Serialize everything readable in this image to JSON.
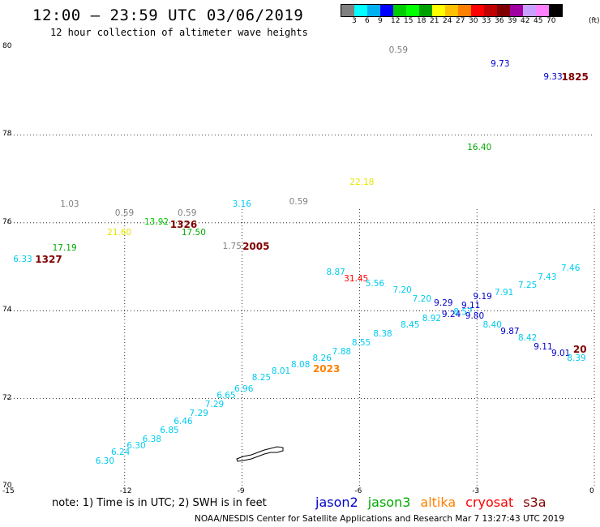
{
  "title": "12:00 — 23:59 UTC 03/06/2019",
  "subtitle": "12 hour collection of altimeter wave heights",
  "legend": {
    "unit": "(ft)",
    "colors": [
      "#808080",
      "#00ffff",
      "#00b0f0",
      "#0000ff",
      "#00cc00",
      "#00ff00",
      "#00a000",
      "#ffff00",
      "#ffc000",
      "#ff8000",
      "#ff0000",
      "#c00000",
      "#800000",
      "#a000a0",
      "#c8a0ff",
      "#ff80ff",
      "#000000"
    ],
    "labels": [
      "3",
      "6",
      "9",
      "12",
      "15",
      "18",
      "21",
      "24",
      "27",
      "30",
      "33",
      "36",
      "39",
      "42",
      "45",
      "70"
    ]
  },
  "axes": {
    "x_ticks": [
      "-15",
      "-12",
      "-9",
      "-6",
      "-3",
      "0"
    ],
    "y_ticks": [
      "80",
      "78",
      "76",
      "74",
      "72",
      "70"
    ]
  },
  "chart_data": {
    "type": "scatter",
    "x_range": [
      -15,
      0
    ],
    "y_range": [
      70,
      80
    ],
    "grid": true,
    "wave_heights": [
      {
        "v": "0.59",
        "lon": -5.0,
        "lat": 79.9,
        "c": "#808080"
      },
      {
        "v": "9.73",
        "lon": -2.4,
        "lat": 79.6,
        "c": "#0000cc"
      },
      {
        "v": "9.33",
        "lon": -1.05,
        "lat": 79.3,
        "c": "#0000cc"
      },
      {
        "v": "16.40",
        "lon": -3.0,
        "lat": 77.7,
        "c": "#00aa00"
      },
      {
        "v": "22.18",
        "lon": -6.0,
        "lat": 76.9,
        "c": "#e6e600"
      },
      {
        "v": "0.59",
        "lon": -7.55,
        "lat": 76.45,
        "c": "#808080"
      },
      {
        "v": "1.03",
        "lon": -13.4,
        "lat": 76.4,
        "c": "#808080"
      },
      {
        "v": "3.16",
        "lon": -9.0,
        "lat": 76.4,
        "c": "#00ccee"
      },
      {
        "v": "0.59",
        "lon": -12.0,
        "lat": 76.2,
        "c": "#808080"
      },
      {
        "v": "0.59",
        "lon": -10.4,
        "lat": 76.2,
        "c": "#808080"
      },
      {
        "v": "13.92",
        "lon": -11.25,
        "lat": 76.0,
        "c": "#00cc00"
      },
      {
        "v": "21.60",
        "lon": -12.2,
        "lat": 75.75,
        "c": "#e6e600"
      },
      {
        "v": "17.50",
        "lon": -10.3,
        "lat": 75.75,
        "c": "#00aa00"
      },
      {
        "v": "1.75",
        "lon": -9.25,
        "lat": 75.45,
        "c": "#808080"
      },
      {
        "v": "17.19",
        "lon": -13.6,
        "lat": 75.4,
        "c": "#00aa00"
      },
      {
        "v": "6.33",
        "lon": -14.6,
        "lat": 75.15,
        "c": "#00ccee"
      },
      {
        "v": "8.87",
        "lon": -6.6,
        "lat": 74.85,
        "c": "#00ccee"
      },
      {
        "v": "31.45",
        "lon": -6.15,
        "lat": 74.7,
        "c": "#ff0000"
      },
      {
        "v": "5.56",
        "lon": -5.6,
        "lat": 74.6,
        "c": "#00ccee"
      },
      {
        "v": "7.20",
        "lon": -4.9,
        "lat": 74.45,
        "c": "#00ccee"
      },
      {
        "v": "7.20",
        "lon": -4.4,
        "lat": 74.25,
        "c": "#00ccee"
      },
      {
        "v": "9.29",
        "lon": -3.85,
        "lat": 74.15,
        "c": "#0000cc"
      },
      {
        "v": "9.11",
        "lon": -3.15,
        "lat": 74.1,
        "c": "#0000cc"
      },
      {
        "v": "9.24",
        "lon": -3.65,
        "lat": 73.9,
        "c": "#0000cc"
      },
      {
        "v": "8.57",
        "lon": -3.35,
        "lat": 73.95,
        "c": "#00ccee"
      },
      {
        "v": "9.19",
        "lon": -2.85,
        "lat": 74.3,
        "c": "#0000cc"
      },
      {
        "v": "7.91",
        "lon": -2.3,
        "lat": 74.4,
        "c": "#00ccee"
      },
      {
        "v": "7.25",
        "lon": -1.7,
        "lat": 74.55,
        "c": "#00ccee"
      },
      {
        "v": "7.43",
        "lon": -1.2,
        "lat": 74.75,
        "c": "#00ccee"
      },
      {
        "v": "7.46",
        "lon": -0.6,
        "lat": 74.95,
        "c": "#00ccee"
      },
      {
        "v": "8.92",
        "lon": -4.15,
        "lat": 73.8,
        "c": "#00ccee"
      },
      {
        "v": "9.80",
        "lon": -3.05,
        "lat": 73.85,
        "c": "#0000cc"
      },
      {
        "v": "8.40",
        "lon": -2.6,
        "lat": 73.65,
        "c": "#00ccee"
      },
      {
        "v": "8.45",
        "lon": -4.7,
        "lat": 73.65,
        "c": "#00ccee"
      },
      {
        "v": "9.87",
        "lon": -2.15,
        "lat": 73.5,
        "c": "#0000cc"
      },
      {
        "v": "8.38",
        "lon": -5.4,
        "lat": 73.45,
        "c": "#00ccee"
      },
      {
        "v": "8.42",
        "lon": -1.7,
        "lat": 73.35,
        "c": "#00ccee"
      },
      {
        "v": "8.55",
        "lon": -5.95,
        "lat": 73.25,
        "c": "#00ccee"
      },
      {
        "v": "9.11",
        "lon": -1.3,
        "lat": 73.15,
        "c": "#0000cc"
      },
      {
        "v": "7.88",
        "lon": -6.45,
        "lat": 73.05,
        "c": "#00ccee"
      },
      {
        "v": "9.01",
        "lon": -0.85,
        "lat": 73.0,
        "c": "#0000cc"
      },
      {
        "v": "8.26",
        "lon": -6.95,
        "lat": 72.9,
        "c": "#00ccee"
      },
      {
        "v": "8.39",
        "lon": -0.45,
        "lat": 72.9,
        "c": "#00ccee"
      },
      {
        "v": "8.08",
        "lon": -7.5,
        "lat": 72.75,
        "c": "#00ccee"
      },
      {
        "v": "8.01",
        "lon": -8.0,
        "lat": 72.6,
        "c": "#00ccee"
      },
      {
        "v": "8.25",
        "lon": -8.5,
        "lat": 72.45,
        "c": "#00ccee"
      },
      {
        "v": "6.96",
        "lon": -8.95,
        "lat": 72.2,
        "c": "#00ccee"
      },
      {
        "v": "6.65",
        "lon": -9.4,
        "lat": 72.05,
        "c": "#00ccee"
      },
      {
        "v": "7.29",
        "lon": -9.7,
        "lat": 71.85,
        "c": "#00ccee"
      },
      {
        "v": "7.29",
        "lon": -10.1,
        "lat": 71.65,
        "c": "#00ccee"
      },
      {
        "v": "6.46",
        "lon": -10.5,
        "lat": 71.45,
        "c": "#00ccee"
      },
      {
        "v": "6.85",
        "lon": -10.85,
        "lat": 71.25,
        "c": "#00ccee"
      },
      {
        "v": "6.38",
        "lon": -11.3,
        "lat": 71.05,
        "c": "#00ccee"
      },
      {
        "v": "6.30",
        "lon": -11.7,
        "lat": 70.9,
        "c": "#00ccee"
      },
      {
        "v": "6.24",
        "lon": -12.1,
        "lat": 70.75,
        "c": "#00ccee"
      },
      {
        "v": "6.30",
        "lon": -12.5,
        "lat": 70.55,
        "c": "#00ccee"
      }
    ],
    "pass_times": [
      {
        "v": "1825",
        "lon": -0.55,
        "lat": 79.3,
        "c": "#800000"
      },
      {
        "v": "1326",
        "lon": -10.55,
        "lat": 75.95,
        "c": "#800000"
      },
      {
        "v": "2005",
        "lon": -8.7,
        "lat": 75.45,
        "c": "#800000"
      },
      {
        "v": "1327",
        "lon": -14.0,
        "lat": 75.15,
        "c": "#800000"
      },
      {
        "v": "2023",
        "lon": -6.9,
        "lat": 72.65,
        "c": "#ff8000"
      },
      {
        "v": "20",
        "lon": -0.25,
        "lat": 73.1,
        "c": "#800000"
      }
    ]
  },
  "note": "note: 1) Time is in UTC; 2) SWH is in feet",
  "satellites": [
    {
      "name": "jason2",
      "color": "#0000cc"
    },
    {
      "name": "jason3",
      "color": "#00aa00"
    },
    {
      "name": "altika",
      "color": "#ff8000"
    },
    {
      "name": "cryosat",
      "color": "#ff0000"
    },
    {
      "name": "s3a",
      "color": "#800000"
    }
  ],
  "credit": "NOAA/NESDIS Center for Satellite Applications and Research    Mar  7 13:27:43 UTC 2019"
}
